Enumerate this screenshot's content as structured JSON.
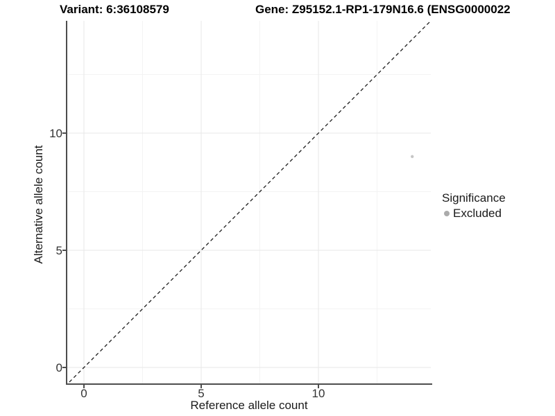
{
  "header": {
    "variant_title": "Variant: 6:36108579",
    "gene_title": "Gene: Z95152.1-RP1-179N16.6 (ENSG0000022"
  },
  "legend": {
    "title": "Significance",
    "items": [
      {
        "label": "Excluded",
        "color": "#ababab"
      }
    ]
  },
  "colors": {
    "background": "#ffffff",
    "axis_line": "#4d4d4d",
    "tick_text": "#333333",
    "grid_major": "#e7e7e7",
    "grid_minor": "#f3f3f3",
    "identity_line": "#1a1a1a",
    "point": "#c6c6c6"
  },
  "chart_data": {
    "type": "scatter",
    "title_left": "Variant: 6:36108579",
    "title_right": "Gene: Z95152.1-RP1-179N16.6 (ENSG0000022",
    "xlabel": "Reference allele count",
    "ylabel": "Alternative allele count",
    "xlim": [
      -0.71,
      14.79
    ],
    "ylim": [
      -0.71,
      14.79
    ],
    "x_ticks": [
      0,
      5,
      10
    ],
    "y_ticks": [
      0,
      5,
      10
    ],
    "minor_gridlines": [
      2.5,
      7.5,
      12.5
    ],
    "grid": true,
    "identity_line": {
      "equation": "y = x",
      "style": "dashed",
      "color": "#1a1a1a"
    },
    "series": [
      {
        "name": "Excluded",
        "color": "#c6c6c6",
        "point_radius": 2.2,
        "points": [
          {
            "x": 14,
            "y": 9
          }
        ]
      }
    ],
    "legend_title": "Significance",
    "legend_position": "right"
  }
}
